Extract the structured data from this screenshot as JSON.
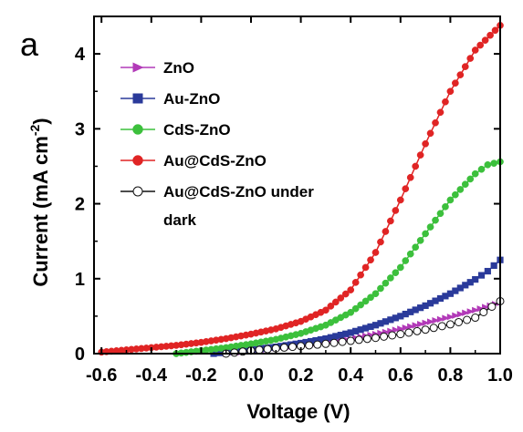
{
  "panel_label": "a",
  "chart_data": {
    "type": "line",
    "xlabel": "Voltage (V)",
    "ylabel_main": "Current (mA cm",
    "ylabel_sup": "-2",
    "ylabel_close": ")",
    "xlim": [
      -0.63,
      1.0
    ],
    "ylim": [
      0,
      4.5
    ],
    "xticks": [
      -0.6,
      -0.4,
      -0.2,
      0.0,
      0.2,
      0.4,
      0.6,
      0.8,
      1.0
    ],
    "xtick_labels": [
      "-0.6",
      "-0.4",
      "-0.2",
      "0.0",
      "0.2",
      "0.4",
      "0.6",
      "0.8",
      "1.0"
    ],
    "yticks": [
      0,
      1,
      2,
      3,
      4
    ],
    "ytick_labels": [
      "0",
      "1",
      "2",
      "3",
      "4"
    ],
    "legend_placement": "top-left",
    "series": [
      {
        "name": "ZnO",
        "color": "#b23ab8",
        "marker": "triangle-right",
        "points": [
          [
            -0.1,
            0.0
          ],
          [
            0.0,
            0.03
          ],
          [
            0.1,
            0.07
          ],
          [
            0.2,
            0.11
          ],
          [
            0.3,
            0.15
          ],
          [
            0.4,
            0.2
          ],
          [
            0.5,
            0.26
          ],
          [
            0.6,
            0.33
          ],
          [
            0.7,
            0.41
          ],
          [
            0.8,
            0.49
          ],
          [
            0.9,
            0.58
          ],
          [
            1.0,
            0.68
          ]
        ]
      },
      {
        "name": "Au-ZnO",
        "color": "#2a3a9a",
        "marker": "square",
        "points": [
          [
            -0.15,
            0.0
          ],
          [
            -0.1,
            0.02
          ],
          [
            0.0,
            0.05
          ],
          [
            0.1,
            0.09
          ],
          [
            0.2,
            0.14
          ],
          [
            0.3,
            0.2
          ],
          [
            0.4,
            0.28
          ],
          [
            0.5,
            0.38
          ],
          [
            0.6,
            0.5
          ],
          [
            0.7,
            0.64
          ],
          [
            0.8,
            0.8
          ],
          [
            0.9,
            0.99
          ],
          [
            0.95,
            1.1
          ],
          [
            1.0,
            1.25
          ]
        ]
      },
      {
        "name": "CdS-ZnO",
        "color": "#3cc03c",
        "marker": "circle",
        "points": [
          [
            -0.3,
            0.0
          ],
          [
            -0.2,
            0.04
          ],
          [
            -0.1,
            0.08
          ],
          [
            0.0,
            0.13
          ],
          [
            0.1,
            0.19
          ],
          [
            0.2,
            0.27
          ],
          [
            0.3,
            0.38
          ],
          [
            0.4,
            0.55
          ],
          [
            0.5,
            0.8
          ],
          [
            0.6,
            1.15
          ],
          [
            0.7,
            1.6
          ],
          [
            0.8,
            2.05
          ],
          [
            0.9,
            2.4
          ],
          [
            0.95,
            2.52
          ],
          [
            1.0,
            2.56
          ]
        ]
      },
      {
        "name": "Au@CdS-ZnO",
        "color": "#e02424",
        "marker": "circle",
        "points": [
          [
            -0.6,
            0.02
          ],
          [
            -0.5,
            0.05
          ],
          [
            -0.4,
            0.08
          ],
          [
            -0.3,
            0.11
          ],
          [
            -0.2,
            0.15
          ],
          [
            -0.1,
            0.2
          ],
          [
            0.0,
            0.26
          ],
          [
            0.1,
            0.33
          ],
          [
            0.2,
            0.43
          ],
          [
            0.3,
            0.58
          ],
          [
            0.4,
            0.85
          ],
          [
            0.5,
            1.35
          ],
          [
            0.6,
            2.05
          ],
          [
            0.7,
            2.8
          ],
          [
            0.8,
            3.5
          ],
          [
            0.9,
            4.05
          ],
          [
            1.0,
            4.38
          ]
        ]
      },
      {
        "name": "Au@CdS-ZnO under dark",
        "name_line1": "Au@CdS-ZnO under",
        "name_line2": "dark",
        "color": "#111111",
        "marker": "open-circle",
        "points": [
          [
            -0.1,
            0.0
          ],
          [
            0.0,
            0.04
          ],
          [
            0.1,
            0.07
          ],
          [
            0.2,
            0.1
          ],
          [
            0.3,
            0.13
          ],
          [
            0.4,
            0.17
          ],
          [
            0.5,
            0.21
          ],
          [
            0.6,
            0.26
          ],
          [
            0.7,
            0.32
          ],
          [
            0.8,
            0.39
          ],
          [
            0.9,
            0.48
          ],
          [
            1.0,
            0.7
          ]
        ]
      }
    ]
  }
}
